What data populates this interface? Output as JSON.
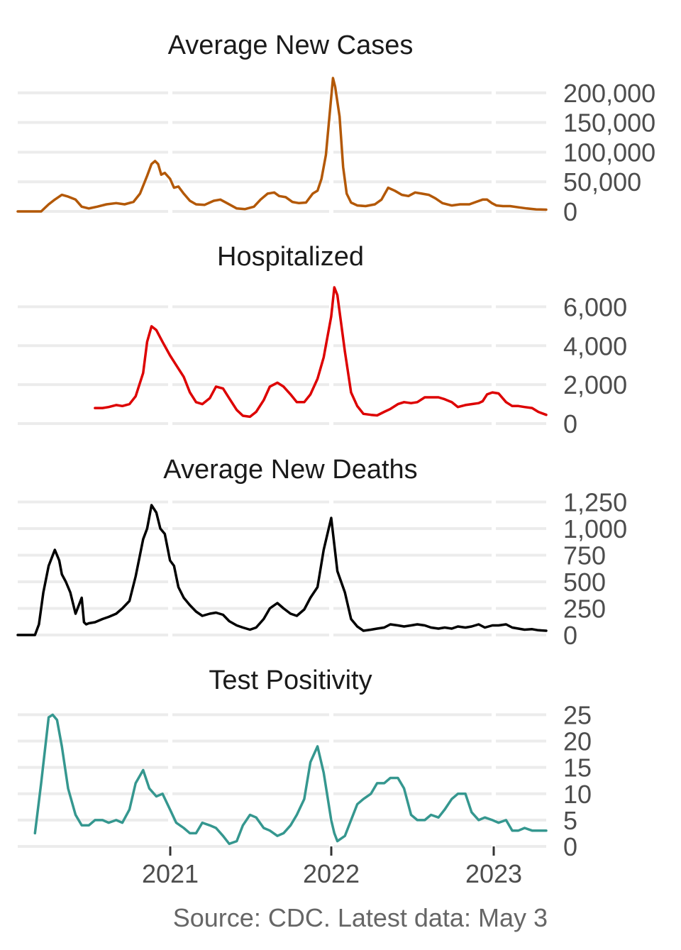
{
  "source_note": "Source: CDC. Latest data: May 3",
  "x_ticks": [
    "2021",
    "2022",
    "2023"
  ],
  "chart_data": [
    {
      "type": "line",
      "title": "Average New Cases",
      "color": "#b35806",
      "yticks": [
        0,
        50000,
        100000,
        150000,
        200000
      ],
      "ytick_labels": [
        "0",
        "50,000",
        "100,000",
        "150,000",
        "200,000"
      ],
      "ylim": [
        0,
        225000
      ],
      "x": [
        "2020-01-22",
        "2020-03-01",
        "2020-03-15",
        "2020-04-01",
        "2020-04-15",
        "2020-05-01",
        "2020-05-15",
        "2020-06-01",
        "2020-06-15",
        "2020-07-01",
        "2020-07-20",
        "2020-08-10",
        "2020-09-01",
        "2020-09-20",
        "2020-10-10",
        "2020-10-25",
        "2020-11-10",
        "2020-11-20",
        "2020-11-28",
        "2020-12-05",
        "2020-12-12",
        "2020-12-20",
        "2021-01-01",
        "2021-01-10",
        "2021-01-20",
        "2021-02-01",
        "2021-02-15",
        "2021-03-01",
        "2021-03-20",
        "2021-04-10",
        "2021-04-25",
        "2021-05-10",
        "2021-06-01",
        "2021-06-20",
        "2021-07-10",
        "2021-07-25",
        "2021-08-10",
        "2021-08-25",
        "2021-09-05",
        "2021-09-20",
        "2021-10-05",
        "2021-10-20",
        "2021-11-05",
        "2021-11-20",
        "2021-12-01",
        "2021-12-10",
        "2021-12-20",
        "2021-12-28",
        "2022-01-05",
        "2022-01-10",
        "2022-01-20",
        "2022-01-28",
        "2022-02-05",
        "2022-02-15",
        "2022-03-01",
        "2022-03-20",
        "2022-04-10",
        "2022-04-25",
        "2022-05-10",
        "2022-05-25",
        "2022-06-10",
        "2022-06-25",
        "2022-07-10",
        "2022-07-25",
        "2022-08-10",
        "2022-08-25",
        "2022-09-10",
        "2022-10-01",
        "2022-10-20",
        "2022-11-10",
        "2022-11-25",
        "2022-12-10",
        "2022-12-20",
        "2022-12-31",
        "2023-01-10",
        "2023-01-25",
        "2023-02-10",
        "2023-03-01",
        "2023-03-20",
        "2023-04-10",
        "2023-05-03"
      ],
      "y": [
        0,
        0,
        0,
        12000,
        20000,
        28000,
        25000,
        20000,
        8000,
        5000,
        8000,
        12000,
        14000,
        12000,
        16000,
        30000,
        60000,
        80000,
        85000,
        80000,
        62000,
        65000,
        55000,
        40000,
        42000,
        30000,
        18000,
        12000,
        11000,
        18000,
        20000,
        14000,
        5000,
        4000,
        8000,
        20000,
        30000,
        32000,
        26000,
        24000,
        16000,
        14000,
        15000,
        30000,
        35000,
        55000,
        95000,
        160000,
        225000,
        210000,
        160000,
        75000,
        30000,
        15000,
        10000,
        9000,
        12000,
        20000,
        40000,
        35000,
        28000,
        26000,
        32000,
        30000,
        28000,
        22000,
        14000,
        10000,
        12000,
        12000,
        16000,
        20000,
        20000,
        14000,
        10000,
        9000,
        9000,
        7000,
        5000,
        3500,
        3000
      ]
    },
    {
      "type": "line",
      "title": "Hospitalized",
      "color": "#dd0000",
      "yticks": [
        0,
        2000,
        4000,
        6000
      ],
      "ytick_labels": [
        "0",
        "2,000",
        "4,000",
        "6,000"
      ],
      "ylim": [
        0,
        7000
      ],
      "x": [
        "2020-07-15",
        "2020-08-01",
        "2020-08-15",
        "2020-09-01",
        "2020-09-15",
        "2020-10-01",
        "2020-10-15",
        "2020-11-01",
        "2020-11-10",
        "2020-11-20",
        "2020-12-01",
        "2020-12-15",
        "2021-01-01",
        "2021-01-15",
        "2021-02-01",
        "2021-02-15",
        "2021-03-01",
        "2021-03-15",
        "2021-04-01",
        "2021-04-15",
        "2021-05-01",
        "2021-05-15",
        "2021-06-01",
        "2021-06-15",
        "2021-07-01",
        "2021-07-15",
        "2021-08-01",
        "2021-08-15",
        "2021-09-01",
        "2021-09-15",
        "2021-10-01",
        "2021-10-15",
        "2021-11-01",
        "2021-11-15",
        "2021-12-01",
        "2021-12-15",
        "2022-01-01",
        "2022-01-08",
        "2022-01-15",
        "2022-02-01",
        "2022-02-15",
        "2022-03-01",
        "2022-03-15",
        "2022-04-01",
        "2022-04-15",
        "2022-05-01",
        "2022-05-15",
        "2022-06-01",
        "2022-06-15",
        "2022-07-01",
        "2022-07-15",
        "2022-08-01",
        "2022-08-15",
        "2022-09-01",
        "2022-09-15",
        "2022-10-01",
        "2022-10-15",
        "2022-11-01",
        "2022-11-15",
        "2022-12-01",
        "2022-12-10",
        "2022-12-20",
        "2023-01-01",
        "2023-01-15",
        "2023-02-01",
        "2023-02-15",
        "2023-03-01",
        "2023-03-15",
        "2023-04-01",
        "2023-04-15",
        "2023-05-03"
      ],
      "y": [
        800,
        800,
        850,
        950,
        900,
        1000,
        1400,
        2600,
        4200,
        5000,
        4800,
        4200,
        3500,
        3000,
        2400,
        1600,
        1100,
        1000,
        1300,
        1900,
        1800,
        1300,
        700,
        400,
        350,
        600,
        1200,
        1900,
        2100,
        1900,
        1500,
        1100,
        1100,
        1500,
        2300,
        3400,
        5500,
        7000,
        6600,
        3700,
        1600,
        900,
        500,
        450,
        420,
        600,
        750,
        1000,
        1100,
        1050,
        1100,
        1350,
        1350,
        1350,
        1250,
        1100,
        850,
        950,
        1000,
        1050,
        1150,
        1500,
        1600,
        1550,
        1100,
        900,
        900,
        850,
        800,
        600,
        450
      ]
    },
    {
      "type": "line",
      "title": "Average New Deaths",
      "color": "#000000",
      "yticks": [
        0,
        250,
        500,
        750,
        1000,
        1250
      ],
      "ytick_labels": [
        "0",
        "250",
        "500",
        "750",
        "1,000",
        "1,250"
      ],
      "ylim": [
        0,
        1300
      ],
      "x": [
        "2020-01-22",
        "2020-03-01",
        "2020-03-10",
        "2020-03-20",
        "2020-04-01",
        "2020-04-15",
        "2020-04-25",
        "2020-05-01",
        "2020-05-10",
        "2020-05-20",
        "2020-06-01",
        "2020-06-15",
        "2020-06-20",
        "2020-06-25",
        "2020-07-01",
        "2020-07-15",
        "2020-08-01",
        "2020-08-15",
        "2020-09-01",
        "2020-09-15",
        "2020-10-01",
        "2020-10-15",
        "2020-11-01",
        "2020-11-10",
        "2020-11-20",
        "2020-12-01",
        "2020-12-10",
        "2020-12-20",
        "2021-01-01",
        "2021-01-10",
        "2021-01-20",
        "2021-02-01",
        "2021-02-15",
        "2021-03-01",
        "2021-03-15",
        "2021-04-01",
        "2021-04-15",
        "2021-05-01",
        "2021-05-15",
        "2021-06-01",
        "2021-06-15",
        "2021-07-01",
        "2021-07-15",
        "2021-08-01",
        "2021-08-15",
        "2021-09-01",
        "2021-09-15",
        "2021-10-01",
        "2021-10-15",
        "2021-11-01",
        "2021-11-15",
        "2021-12-01",
        "2021-12-15",
        "2022-01-01",
        "2022-01-15",
        "2022-02-01",
        "2022-02-15",
        "2022-03-01",
        "2022-03-15",
        "2022-04-01",
        "2022-04-15",
        "2022-05-01",
        "2022-05-15",
        "2022-06-01",
        "2022-06-15",
        "2022-07-01",
        "2022-07-15",
        "2022-08-01",
        "2022-08-15",
        "2022-09-01",
        "2022-09-15",
        "2022-10-01",
        "2022-10-15",
        "2022-11-01",
        "2022-11-15",
        "2022-12-01",
        "2022-12-15",
        "2023-01-01",
        "2023-01-15",
        "2023-02-01",
        "2023-02-15",
        "2023-03-01",
        "2023-03-15",
        "2023-04-01",
        "2023-04-15",
        "2023-05-03"
      ],
      "y": [
        0,
        0,
        100,
        400,
        650,
        800,
        700,
        570,
        500,
        400,
        200,
        350,
        120,
        100,
        110,
        120,
        150,
        170,
        200,
        250,
        320,
        550,
        900,
        1000,
        1220,
        1150,
        1000,
        950,
        700,
        650,
        450,
        350,
        280,
        220,
        180,
        200,
        210,
        190,
        130,
        90,
        70,
        50,
        70,
        150,
        250,
        300,
        250,
        200,
        180,
        240,
        350,
        450,
        800,
        1100,
        600,
        400,
        150,
        80,
        40,
        50,
        60,
        70,
        100,
        90,
        80,
        90,
        100,
        90,
        70,
        60,
        70,
        60,
        80,
        70,
        80,
        100,
        70,
        90,
        90,
        100,
        70,
        60,
        50,
        55,
        45,
        40
      ]
    },
    {
      "type": "line",
      "title": "Test Positivity",
      "color": "#35978f",
      "yticks": [
        0,
        5,
        10,
        15,
        20,
        25
      ],
      "ytick_labels": [
        "0",
        "5",
        "10",
        "15",
        "20",
        "25"
      ],
      "ylim": [
        0,
        26
      ],
      "x": [
        "2020-03-01",
        "2020-03-15",
        "2020-04-01",
        "2020-04-10",
        "2020-04-20",
        "2020-05-01",
        "2020-05-15",
        "2020-06-01",
        "2020-06-15",
        "2020-07-01",
        "2020-07-15",
        "2020-08-01",
        "2020-08-15",
        "2020-09-01",
        "2020-09-15",
        "2020-10-01",
        "2020-10-15",
        "2020-11-01",
        "2020-11-15",
        "2020-12-01",
        "2020-12-15",
        "2021-01-01",
        "2021-01-15",
        "2021-02-01",
        "2021-02-15",
        "2021-03-01",
        "2021-03-15",
        "2021-04-01",
        "2021-04-15",
        "2021-05-01",
        "2021-05-15",
        "2021-06-01",
        "2021-06-15",
        "2021-07-01",
        "2021-07-15",
        "2021-08-01",
        "2021-08-15",
        "2021-09-01",
        "2021-09-15",
        "2021-10-01",
        "2021-10-15",
        "2021-11-01",
        "2021-11-15",
        "2021-12-01",
        "2021-12-15",
        "2022-01-01",
        "2022-01-08",
        "2022-01-15",
        "2022-02-01",
        "2022-02-15",
        "2022-03-01",
        "2022-03-15",
        "2022-04-01",
        "2022-04-15",
        "2022-05-01",
        "2022-05-15",
        "2022-06-01",
        "2022-06-15",
        "2022-07-01",
        "2022-07-15",
        "2022-08-01",
        "2022-08-15",
        "2022-09-01",
        "2022-09-15",
        "2022-10-01",
        "2022-10-15",
        "2022-11-01",
        "2022-11-15",
        "2022-12-01",
        "2022-12-15",
        "2023-01-01",
        "2023-01-15",
        "2023-02-01",
        "2023-02-15",
        "2023-03-01",
        "2023-03-15",
        "2023-04-01",
        "2023-04-15",
        "2023-05-03"
      ],
      "y": [
        2.5,
        12,
        24.5,
        25,
        24,
        19,
        11,
        6,
        4,
        4,
        5,
        5,
        4.5,
        5,
        4.5,
        7,
        12,
        14.5,
        11,
        9.5,
        10,
        7,
        4.5,
        3.5,
        2.5,
        2.5,
        4.5,
        4,
        3.5,
        2,
        0.5,
        1,
        4,
        6,
        5.5,
        3.5,
        3,
        2,
        2.5,
        4,
        6,
        9,
        16,
        19,
        14,
        5,
        2.5,
        1,
        2,
        5,
        8,
        9,
        10,
        12,
        12,
        13,
        13,
        11,
        6,
        5,
        5,
        6,
        5.5,
        7,
        9,
        10,
        10,
        6.5,
        5,
        5.5,
        5,
        4.5,
        5,
        3,
        3,
        3.5,
        3,
        3,
        3
      ]
    }
  ]
}
